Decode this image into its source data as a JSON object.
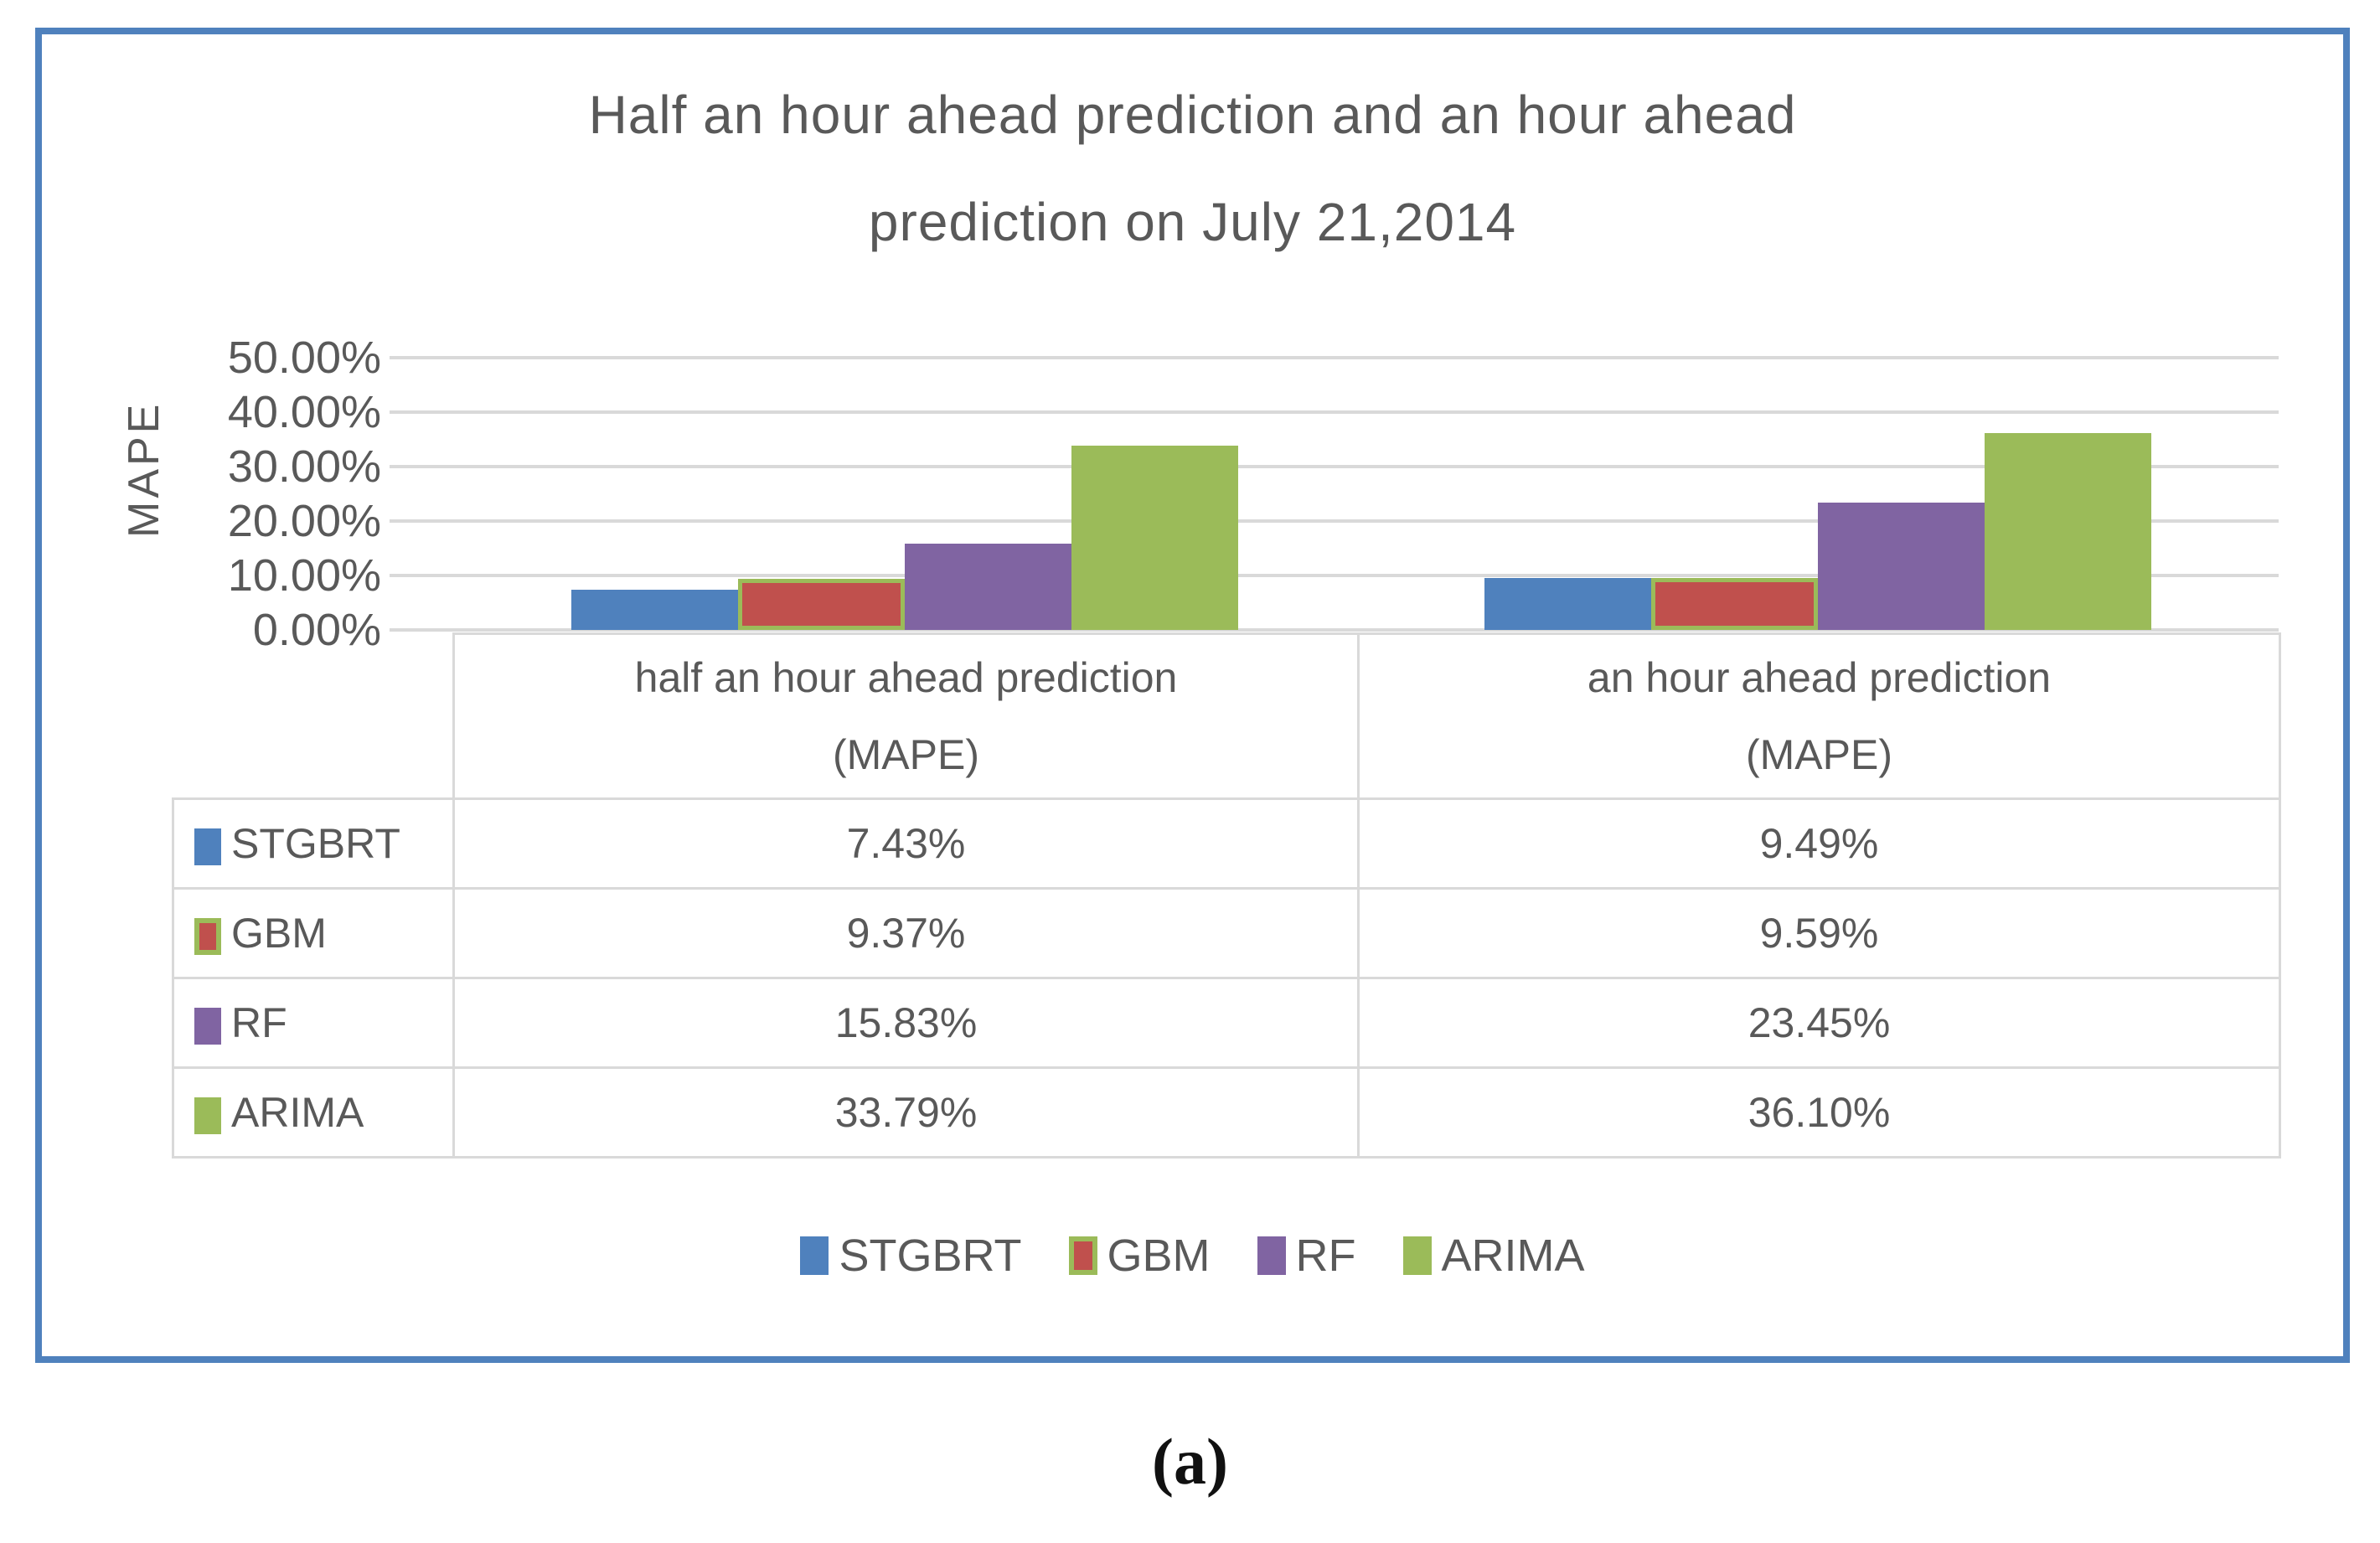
{
  "figure": {
    "title_line1": "Half an hour ahead prediction and an hour ahead",
    "title_line2": "prediction on July 21,2014",
    "caption": "(a)"
  },
  "colors": {
    "figure_border": "#4f81bd",
    "grid": "#d9d9d9",
    "text": "#595959",
    "stgbrt": "#4f81bd",
    "gbm_fill": "#c0504d",
    "gbm_border": "#9bbb59",
    "rf": "#8064a2",
    "arima": "#9bbb59"
  },
  "chart_data": {
    "type": "bar",
    "title": "Half an hour ahead prediction and an hour ahead prediction on July 21,2014",
    "xlabel": "",
    "ylabel": "MAPE",
    "ylim": [
      0,
      50
    ],
    "grid": true,
    "legend_position": "bottom",
    "y_ticks": [
      "50.00%",
      "40.00%",
      "30.00%",
      "20.00%",
      "10.00%",
      "0.00%"
    ],
    "categories": [
      "half an hour ahead prediction (MAPE)",
      "an hour ahead prediction (MAPE)"
    ],
    "series": [
      {
        "name": "STGBRT",
        "color": "#4f81bd",
        "values": [
          7.43,
          9.49
        ],
        "labels": [
          "7.43%",
          "9.49%"
        ]
      },
      {
        "name": "GBM",
        "color": "#c0504d",
        "border": "#9bbb59",
        "values": [
          9.37,
          9.59
        ],
        "labels": [
          "9.37%",
          "9.59%"
        ]
      },
      {
        "name": "RF",
        "color": "#8064a2",
        "values": [
          15.83,
          23.45
        ],
        "labels": [
          "15.83%",
          "23.45%"
        ]
      },
      {
        "name": "ARIMA",
        "color": "#9bbb59",
        "values": [
          33.79,
          36.1
        ],
        "labels": [
          "33.79%",
          "36.10%"
        ]
      }
    ]
  },
  "table": {
    "col_headers": [
      [
        "half an hour ahead prediction",
        "(MAPE)"
      ],
      [
        "an hour ahead prediction",
        "(MAPE)"
      ]
    ]
  }
}
